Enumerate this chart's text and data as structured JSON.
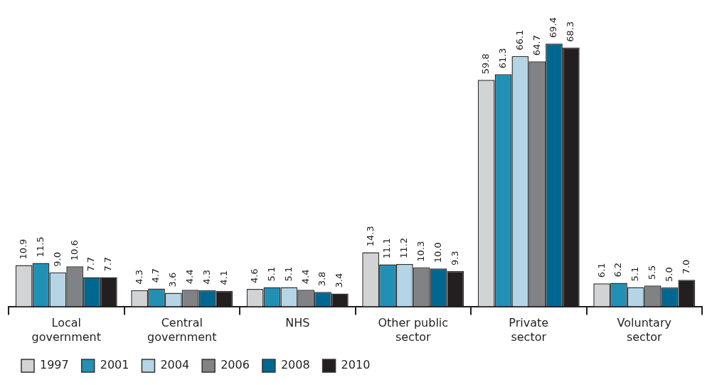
{
  "chart_data": {
    "type": "bar",
    "categories": [
      "Local government",
      "Central government",
      "NHS",
      "Other public sector",
      "Private sector",
      "Voluntary sector"
    ],
    "series": [
      {
        "name": "1997",
        "color": "#d1d3d4",
        "values": [
          10.9,
          4.3,
          4.6,
          14.3,
          59.8,
          6.1
        ],
        "value_labels": [
          "10.9",
          "4.3",
          "4.6",
          "14.3",
          "59.8",
          "6.1"
        ]
      },
      {
        "name": "2001",
        "color": "#2290b5",
        "values": [
          11.5,
          4.7,
          5.1,
          11.1,
          61.3,
          6.2
        ],
        "value_labels": [
          "11.5",
          "4.7",
          "5.1",
          "11.1",
          "61.3",
          "6.2"
        ]
      },
      {
        "name": "2004",
        "color": "#b5d5e6",
        "values": [
          9.0,
          3.6,
          5.1,
          11.2,
          66.1,
          5.1
        ],
        "value_labels": [
          "9.0",
          "3.6",
          "5.1",
          "11.2",
          "66.1",
          "5.1"
        ]
      },
      {
        "name": "2006",
        "color": "#808285",
        "values": [
          10.6,
          4.4,
          4.4,
          10.3,
          64.7,
          5.5
        ],
        "value_labels": [
          "10.6",
          "4.4",
          "4.4",
          "10.3",
          "64.7",
          "5.5"
        ]
      },
      {
        "name": "2008",
        "color": "#006890",
        "values": [
          7.7,
          4.3,
          3.8,
          10.0,
          69.4,
          5.0
        ],
        "value_labels": [
          "7.7",
          "4.3",
          "3.8",
          "10.0",
          "69.4",
          "5.0"
        ]
      },
      {
        "name": "2010",
        "color": "#231f20",
        "values": [
          7.7,
          4.1,
          3.4,
          9.3,
          68.3,
          7.0
        ],
        "value_labels": [
          "7.7",
          "4.1",
          "3.4",
          "9.3",
          "68.3",
          "7.0"
        ]
      }
    ],
    "legend": "bottom left",
    "grid": false,
    "tick_labels": "x"
  }
}
